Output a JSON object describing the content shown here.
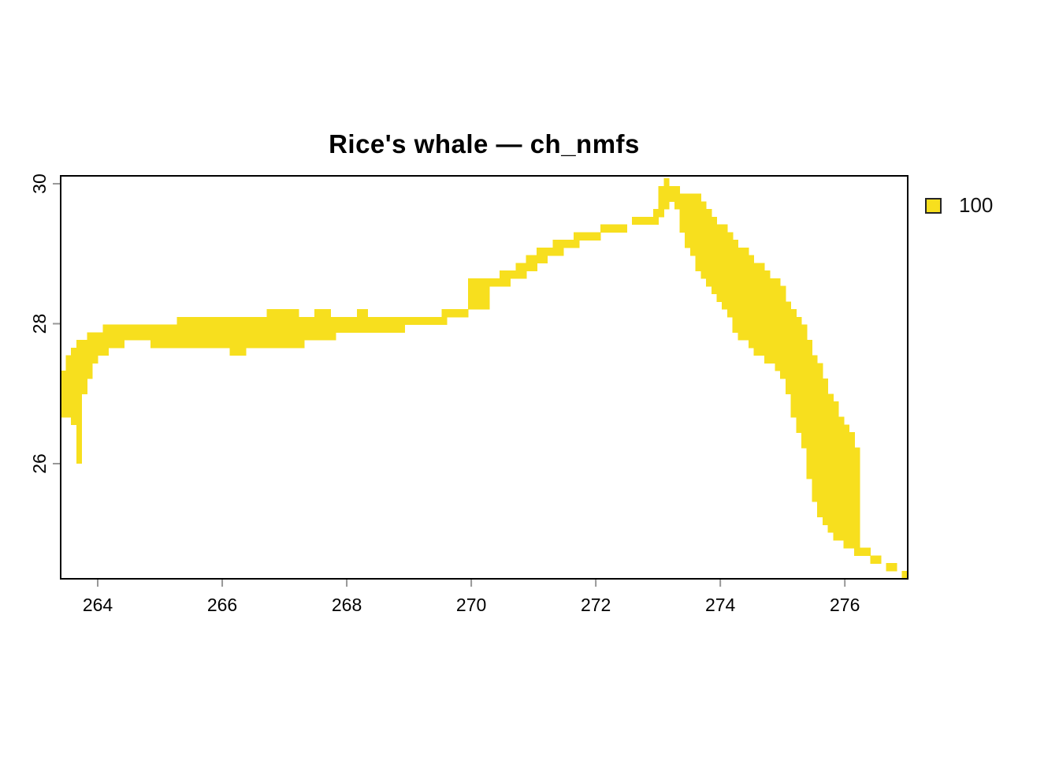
{
  "title": "Rice's whale — ch_nmfs",
  "legend": {
    "label": "100",
    "swatch_color": "#F7DF1E"
  },
  "chart_data": {
    "type": "heatmap",
    "title": "Rice's whale — ch_nmfs",
    "xlabel": "",
    "ylabel": "",
    "grid": false,
    "legend_position": "right",
    "x_axis": {
      "range": [
        263.405,
        277.01
      ],
      "ticks": [
        264,
        266,
        268,
        270,
        272,
        274,
        276
      ]
    },
    "y_axis": {
      "range": [
        24.355,
        30.113
      ],
      "ticks": [
        26,
        28,
        30
      ]
    },
    "legend_entries": [
      {
        "label": "100",
        "value": 100,
        "color": "#F7DF1E"
      }
    ],
    "colors": {
      "fill": "#F7DF1E",
      "box": "#000000",
      "tick": "#979797",
      "text": "#000000"
    },
    "cell_size_deg": {
      "x": 0.085,
      "y": 0.11
    },
    "region_outline_lonlat": [
      [
        263.41,
        27.2
      ],
      [
        263.52,
        27.48
      ],
      [
        263.63,
        27.66
      ],
      [
        263.78,
        27.77
      ],
      [
        263.92,
        27.87
      ],
      [
        264.06,
        27.93
      ],
      [
        264.35,
        27.98
      ],
      [
        264.77,
        27.95
      ],
      [
        265.19,
        28.03
      ],
      [
        265.49,
        28.09
      ],
      [
        265.75,
        28.05
      ],
      [
        266.08,
        28.11
      ],
      [
        266.42,
        28.1
      ],
      [
        266.76,
        28.16
      ],
      [
        267.09,
        28.19
      ],
      [
        267.34,
        28.13
      ],
      [
        267.6,
        28.18
      ],
      [
        267.9,
        28.12
      ],
      [
        268.25,
        28.16
      ],
      [
        268.6,
        28.11
      ],
      [
        268.95,
        28.14
      ],
      [
        269.3,
        28.11
      ],
      [
        269.6,
        28.16
      ],
      [
        269.95,
        28.22
      ],
      [
        270.0,
        28.55
      ],
      [
        269.95,
        28.56
      ],
      [
        269.95,
        28.68
      ],
      [
        270.4,
        28.68
      ],
      [
        270.57,
        28.74
      ],
      [
        270.85,
        28.91
      ],
      [
        271.15,
        29.09
      ],
      [
        271.5,
        29.22
      ],
      [
        271.9,
        29.33
      ],
      [
        272.3,
        29.42
      ],
      [
        272.72,
        29.5
      ],
      [
        272.95,
        29.57
      ],
      [
        273.02,
        29.8
      ],
      [
        273.09,
        30.08
      ],
      [
        273.16,
        30.06
      ],
      [
        273.4,
        29.9
      ],
      [
        273.66,
        29.81
      ],
      [
        273.91,
        29.53
      ],
      [
        274.24,
        29.19
      ],
      [
        274.58,
        28.91
      ],
      [
        274.94,
        28.6
      ],
      [
        275.12,
        28.32
      ],
      [
        275.3,
        28.04
      ],
      [
        275.5,
        27.62
      ],
      [
        275.68,
        27.22
      ],
      [
        275.85,
        26.88
      ],
      [
        276.01,
        26.57
      ],
      [
        276.16,
        26.39
      ],
      [
        276.21,
        26.1
      ],
      [
        276.23,
        25.86
      ],
      [
        276.25,
        25.4
      ],
      [
        276.25,
        25.02
      ],
      [
        276.16,
        24.9
      ],
      [
        276.32,
        24.78
      ],
      [
        276.61,
        24.6
      ],
      [
        276.9,
        24.5
      ],
      [
        277.0,
        24.46
      ],
      [
        277.0,
        24.37
      ],
      [
        276.9,
        24.41
      ],
      [
        276.52,
        24.57
      ],
      [
        276.14,
        24.75
      ],
      [
        275.85,
        24.94
      ],
      [
        275.6,
        25.2
      ],
      [
        275.51,
        25.53
      ],
      [
        275.34,
        26.2
      ],
      [
        275.15,
        26.8
      ],
      [
        274.96,
        27.36
      ],
      [
        274.62,
        27.52
      ],
      [
        274.33,
        27.8
      ],
      [
        274.04,
        28.21
      ],
      [
        273.78,
        28.59
      ],
      [
        273.6,
        28.88
      ],
      [
        273.41,
        29.22
      ],
      [
        273.35,
        29.55
      ],
      [
        273.28,
        29.78
      ],
      [
        273.16,
        29.62
      ],
      [
        273.08,
        29.5
      ],
      [
        272.95,
        29.45
      ],
      [
        272.55,
        29.37
      ],
      [
        272.15,
        29.27
      ],
      [
        271.75,
        29.14
      ],
      [
        271.4,
        28.99
      ],
      [
        271.05,
        28.81
      ],
      [
        270.75,
        28.64
      ],
      [
        270.5,
        28.52
      ],
      [
        270.3,
        28.48
      ],
      [
        270.25,
        28.25
      ],
      [
        270.0,
        28.16
      ],
      [
        269.6,
        28.04
      ],
      [
        269.2,
        27.97
      ],
      [
        268.8,
        27.9
      ],
      [
        268.4,
        27.82
      ],
      [
        268.0,
        27.84
      ],
      [
        267.6,
        27.8
      ],
      [
        267.27,
        27.68
      ],
      [
        266.92,
        27.65
      ],
      [
        266.58,
        27.62
      ],
      [
        266.25,
        27.59
      ],
      [
        265.91,
        27.62
      ],
      [
        265.57,
        27.64
      ],
      [
        265.15,
        27.68
      ],
      [
        264.81,
        27.71
      ],
      [
        264.56,
        27.74
      ],
      [
        264.35,
        27.7
      ],
      [
        264.18,
        27.64
      ],
      [
        264.05,
        27.52
      ],
      [
        263.95,
        27.38
      ],
      [
        263.89,
        27.24
      ],
      [
        263.8,
        27.08
      ],
      [
        263.73,
        26.88
      ],
      [
        263.72,
        26.6
      ],
      [
        263.72,
        26.02
      ],
      [
        263.63,
        26.02
      ],
      [
        263.63,
        26.6
      ],
      [
        263.55,
        26.63
      ],
      [
        263.45,
        26.67
      ],
      [
        263.41,
        26.73
      ]
    ]
  }
}
